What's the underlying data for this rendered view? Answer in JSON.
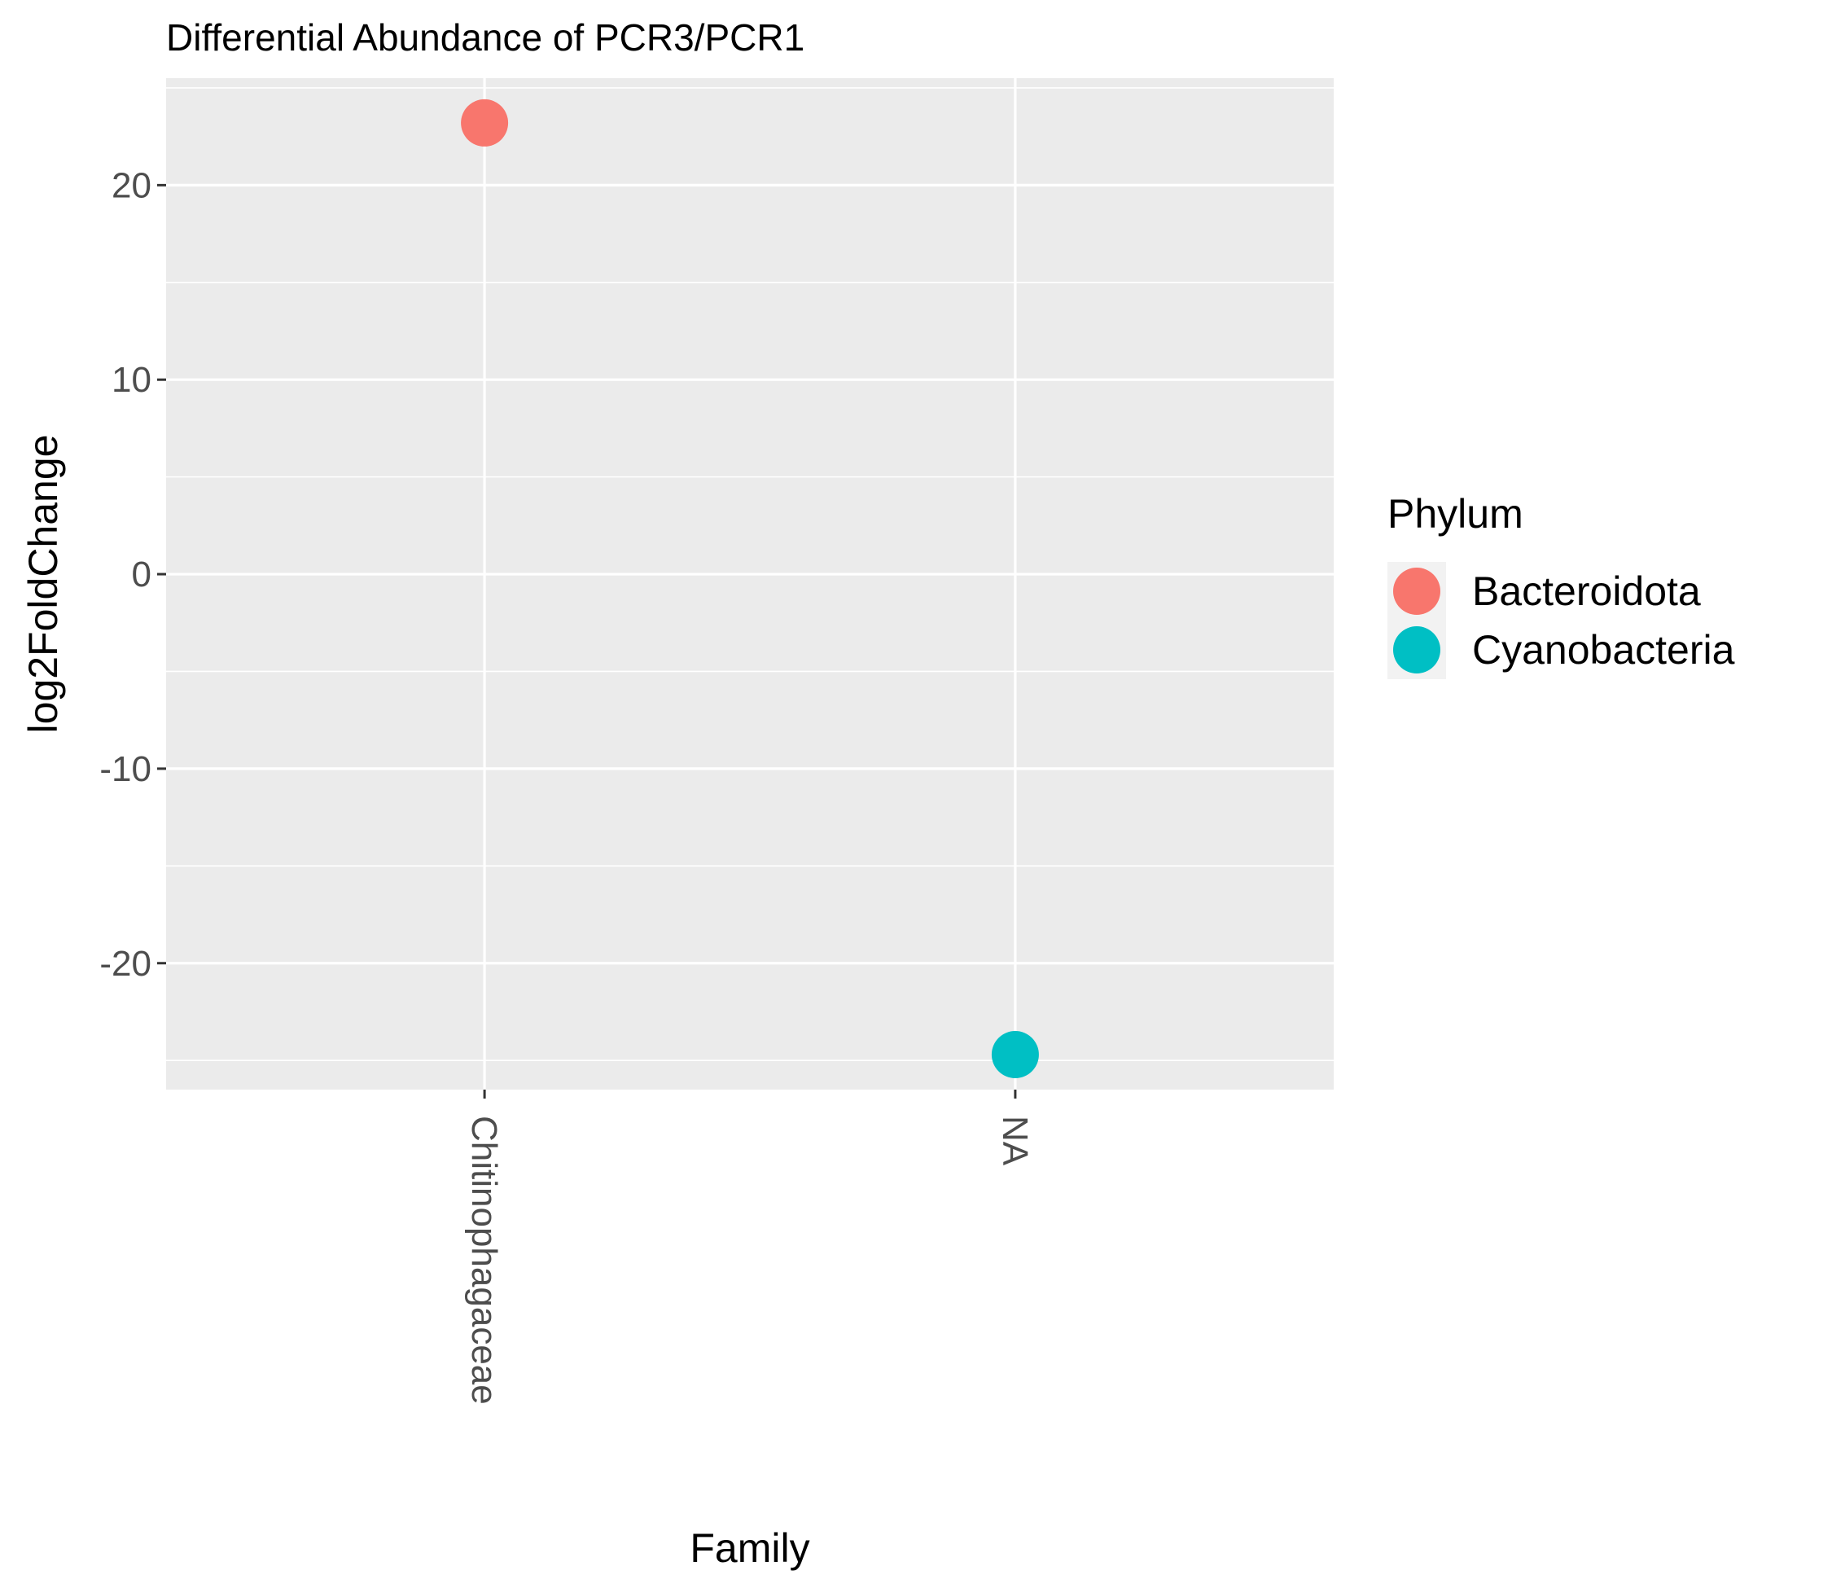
{
  "chart_data": {
    "type": "scatter",
    "title": "Differential Abundance of PCR3/PCR1",
    "xlabel": "Family",
    "ylabel": "log2FoldChange",
    "categories": [
      "Chitinophagaceae",
      "NA"
    ],
    "ylim": [
      -26.5,
      25.5
    ],
    "yticks": [
      20,
      10,
      0,
      -10,
      -20
    ],
    "ytick_labels": [
      "20",
      "10",
      "0",
      "-10",
      "-20"
    ],
    "grid": true,
    "legend": {
      "title": "Phylum",
      "position": "right"
    },
    "series": [
      {
        "name": "Bacteroidota",
        "color": "#F8766D",
        "points": [
          {
            "x": "Chitinophagaceae",
            "y": 23.2
          }
        ]
      },
      {
        "name": "Cyanobacteria",
        "color": "#00BFC4",
        "points": [
          {
            "x": "NA",
            "y": -24.7
          }
        ]
      }
    ]
  }
}
